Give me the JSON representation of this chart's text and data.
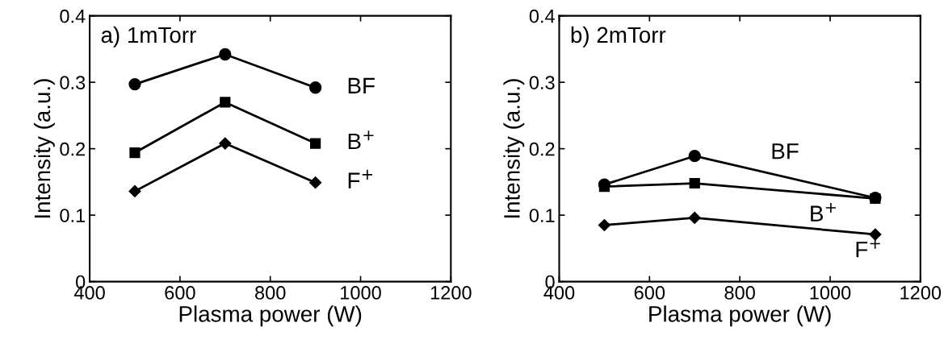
{
  "chart_data": [
    {
      "type": "line",
      "annotations": [
        "a) 1mTorr"
      ],
      "xlabel": "Plasma power (W)",
      "ylabel": "Intensity (a.u.)",
      "x": [
        500,
        700,
        900
      ],
      "series": [
        {
          "name": "BF",
          "color": "#000000",
          "marker": "circle",
          "values": [
            0.297,
            0.342,
            0.292
          ]
        },
        {
          "name": "B$^{+}$",
          "color": "#000000",
          "marker": "square",
          "values": [
            0.194,
            0.27,
            0.208
          ]
        },
        {
          "name": "F$^{+}$",
          "color": "#000000",
          "marker": "diamond",
          "values": [
            0.136,
            0.208,
            0.149
          ]
        }
      ],
      "xlim": [
        400,
        1200
      ],
      "xticks": [
        400,
        600,
        800,
        1000,
        1200
      ],
      "ylim": [
        0,
        0.4
      ],
      "yticks": [
        0,
        0.1,
        0.2,
        0.3,
        0.4
      ],
      "grid": false,
      "legend": false
    },
    {
      "type": "line",
      "annotations": [
        "b) 2mTorr"
      ],
      "xlabel": "Plasma power (W)",
      "ylabel": "Intensity (a.u.)",
      "x": [
        500,
        700,
        1100
      ],
      "series": [
        {
          "name": "BF",
          "color": "#000000",
          "marker": "circle",
          "values": [
            0.146,
            0.189,
            0.126
          ]
        },
        {
          "name": "B$^{+}$",
          "color": "#000000",
          "marker": "square",
          "values": [
            0.143,
            0.148,
            0.125
          ]
        },
        {
          "name": "F$^{+}$",
          "color": "#000000",
          "marker": "diamond",
          "values": [
            0.085,
            0.096,
            0.071
          ]
        }
      ],
      "xlim": [
        400,
        1200
      ],
      "xticks": [
        400,
        600,
        800,
        1000,
        1200
      ],
      "ylim": [
        0,
        0.4
      ],
      "yticks": [
        0,
        0.1,
        0.2,
        0.3,
        0.4
      ],
      "grid": false,
      "legend": false
    }
  ]
}
